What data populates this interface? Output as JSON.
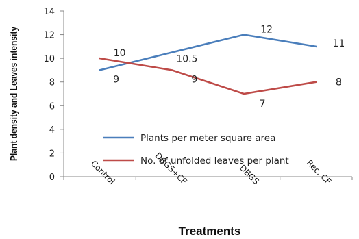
{
  "chart_data": {
    "type": "line",
    "categories": [
      "Control",
      "DBGS+CF",
      "DBGS",
      "Rec. CF"
    ],
    "series": [
      {
        "name": "Plants per meter square area",
        "values": [
          9,
          10.5,
          12,
          11
        ],
        "color": "#4a7ebb"
      },
      {
        "name": "No. of unfolded leaves per plant",
        "values": [
          10,
          9,
          7,
          8
        ],
        "color": "#be4b48"
      }
    ],
    "data_labels": [
      [
        "9",
        "10.5",
        "12",
        "11"
      ],
      [
        "10",
        "9",
        "7",
        "8"
      ]
    ],
    "xlabel": "Treatments",
    "ylabel": "Plant density and Leaves intensity",
    "ylim": [
      0,
      14
    ],
    "yticks": [
      0,
      2,
      4,
      6,
      8,
      10,
      12,
      14
    ],
    "grid": false,
    "legend_position": "center-right"
  }
}
